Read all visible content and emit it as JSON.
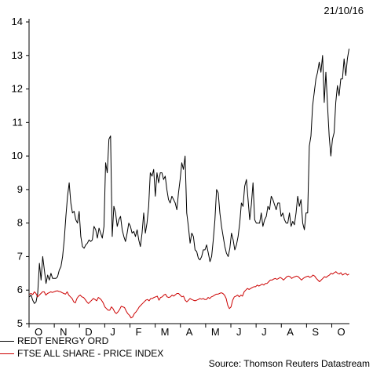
{
  "date": "21/10/16",
  "source": "Source: Thomson Reuters Datastream",
  "chart_data": {
    "type": "line",
    "title": "",
    "xlabel": "",
    "ylabel": "",
    "ylim": [
      5,
      14
    ],
    "yticks": [
      5,
      6,
      7,
      8,
      9,
      10,
      11,
      12,
      13,
      14
    ],
    "xticks": [
      "O",
      "N",
      "D",
      "J",
      "F",
      "M",
      "A",
      "M",
      "J",
      "J",
      "A",
      "S",
      "O"
    ],
    "grid": false,
    "legend_position": "bottom-left",
    "series": [
      {
        "name": "REDT ENERGY ORD",
        "color": "#000000",
        "values": [
          5.8,
          5.85,
          5.7,
          5.6,
          5.65,
          5.9,
          6.8,
          6.3,
          7.0,
          6.6,
          6.2,
          6.45,
          6.3,
          6.5,
          6.35,
          6.35,
          6.35,
          6.4,
          6.6,
          6.7,
          7.0,
          7.5,
          8.2,
          8.8,
          9.2,
          8.6,
          8.3,
          8.35,
          8.1,
          8.0,
          8.35,
          7.6,
          7.3,
          7.25,
          7.35,
          7.4,
          7.5,
          7.45,
          7.5,
          7.9,
          7.8,
          7.55,
          7.85,
          7.7,
          7.55,
          7.9,
          9.8,
          9.5,
          10.5,
          10.6,
          7.6,
          8.5,
          8.3,
          7.9,
          8.1,
          8.2,
          7.8,
          7.6,
          7.45,
          7.7,
          8.0,
          7.9,
          7.7,
          7.75,
          7.6,
          7.8,
          7.5,
          7.3,
          7.7,
          8.3,
          7.7,
          8.0,
          8.5,
          9.5,
          9.4,
          9.6,
          8.8,
          9.5,
          9.2,
          9.5,
          9.5,
          9.3,
          9.4,
          9.0,
          8.7,
          8.6,
          8.8,
          8.7,
          8.6,
          8.4,
          8.9,
          9.3,
          9.8,
          9.6,
          10.0,
          8.3,
          7.9,
          7.4,
          7.7,
          7.6,
          7.2,
          7.15,
          6.95,
          6.9,
          7.0,
          7.2,
          7.2,
          7.35,
          7.1,
          6.85,
          7.0,
          7.5,
          8.1,
          9.0,
          8.9,
          8.3,
          7.9,
          7.6,
          7.3,
          7.1,
          7.0,
          7.25,
          7.7,
          7.5,
          7.2,
          7.35,
          7.6,
          8.0,
          8.6,
          8.5,
          9.1,
          9.3,
          8.7,
          8.1,
          8.55,
          9.2,
          8.1,
          8.0,
          8.0,
          8.0,
          8.3,
          7.9,
          8.1,
          8.2,
          8.5,
          8.4,
          8.8,
          8.7,
          8.55,
          8.4,
          8.6,
          8.6,
          8.2,
          8.3,
          8.1,
          8.0,
          8.0,
          8.3,
          7.9,
          8.05,
          7.95,
          8.3,
          8.8,
          8.5,
          8.7,
          8.0,
          7.8,
          8.3,
          8.3,
          10.3,
          10.6,
          11.5,
          11.9,
          12.3,
          12.5,
          12.8,
          12.5,
          13.0,
          11.6,
          12.5,
          11.5,
          10.6,
          10.0,
          10.5,
          10.7,
          11.6,
          12.1,
          11.8,
          12.3,
          12.3,
          12.9,
          12.4,
          12.9,
          13.2
        ]
      },
      {
        "name": "FTSE ALL SHARE - PRICE INDEX",
        "color": "#cc0000",
        "values": [
          5.88,
          5.9,
          5.87,
          5.95,
          5.9,
          5.8,
          5.85,
          5.9,
          5.95,
          5.95,
          5.85,
          5.9,
          5.92,
          5.95,
          5.93,
          5.95,
          5.97,
          5.98,
          5.96,
          5.95,
          5.92,
          5.9,
          5.88,
          5.95,
          5.85,
          5.8,
          5.75,
          5.65,
          5.62,
          5.75,
          5.82,
          5.85,
          5.8,
          5.78,
          5.72,
          5.65,
          5.6,
          5.65,
          5.7,
          5.75,
          5.72,
          5.68,
          5.78,
          5.75,
          5.7,
          5.62,
          5.5,
          5.45,
          5.4,
          5.4,
          5.5,
          5.45,
          5.35,
          5.3,
          5.35,
          5.42,
          5.52,
          5.5,
          5.48,
          5.38,
          5.3,
          5.25,
          5.17,
          5.2,
          5.3,
          5.35,
          5.42,
          5.5,
          5.55,
          5.6,
          5.65,
          5.7,
          5.72,
          5.68,
          5.75,
          5.75,
          5.78,
          5.8,
          5.82,
          5.7,
          5.78,
          5.8,
          5.85,
          5.88,
          5.8,
          5.78,
          5.8,
          5.85,
          5.82,
          5.86,
          5.9,
          5.9,
          5.85,
          5.8,
          5.82,
          5.7,
          5.65,
          5.7,
          5.75,
          5.72,
          5.7,
          5.68,
          5.7,
          5.72,
          5.75,
          5.73,
          5.75,
          5.72,
          5.72,
          5.78,
          5.75,
          5.8,
          5.82,
          5.85,
          5.88,
          5.88,
          5.9,
          5.92,
          5.9,
          5.85,
          5.75,
          5.55,
          5.45,
          5.5,
          5.7,
          5.8,
          5.82,
          5.85,
          5.8,
          5.85,
          5.82,
          5.95,
          6.0,
          6.05,
          6.02,
          6.05,
          6.08,
          6.1,
          6.1,
          6.15,
          6.12,
          6.15,
          6.18,
          6.15,
          6.2,
          6.2,
          6.25,
          6.3,
          6.3,
          6.33,
          6.35,
          6.32,
          6.35,
          6.38,
          6.35,
          6.3,
          6.35,
          6.4,
          6.42,
          6.4,
          6.35,
          6.38,
          6.4,
          6.42,
          6.4,
          6.35,
          6.3,
          6.35,
          6.38,
          6.4,
          6.42,
          6.38,
          6.4,
          6.45,
          6.42,
          6.35,
          6.3,
          6.25,
          6.3,
          6.35,
          6.4,
          6.38,
          6.42,
          6.45,
          6.5,
          6.48,
          6.52,
          6.55,
          6.5,
          6.48,
          6.52,
          6.45,
          6.48,
          6.5,
          6.45,
          6.48
        ]
      }
    ]
  }
}
